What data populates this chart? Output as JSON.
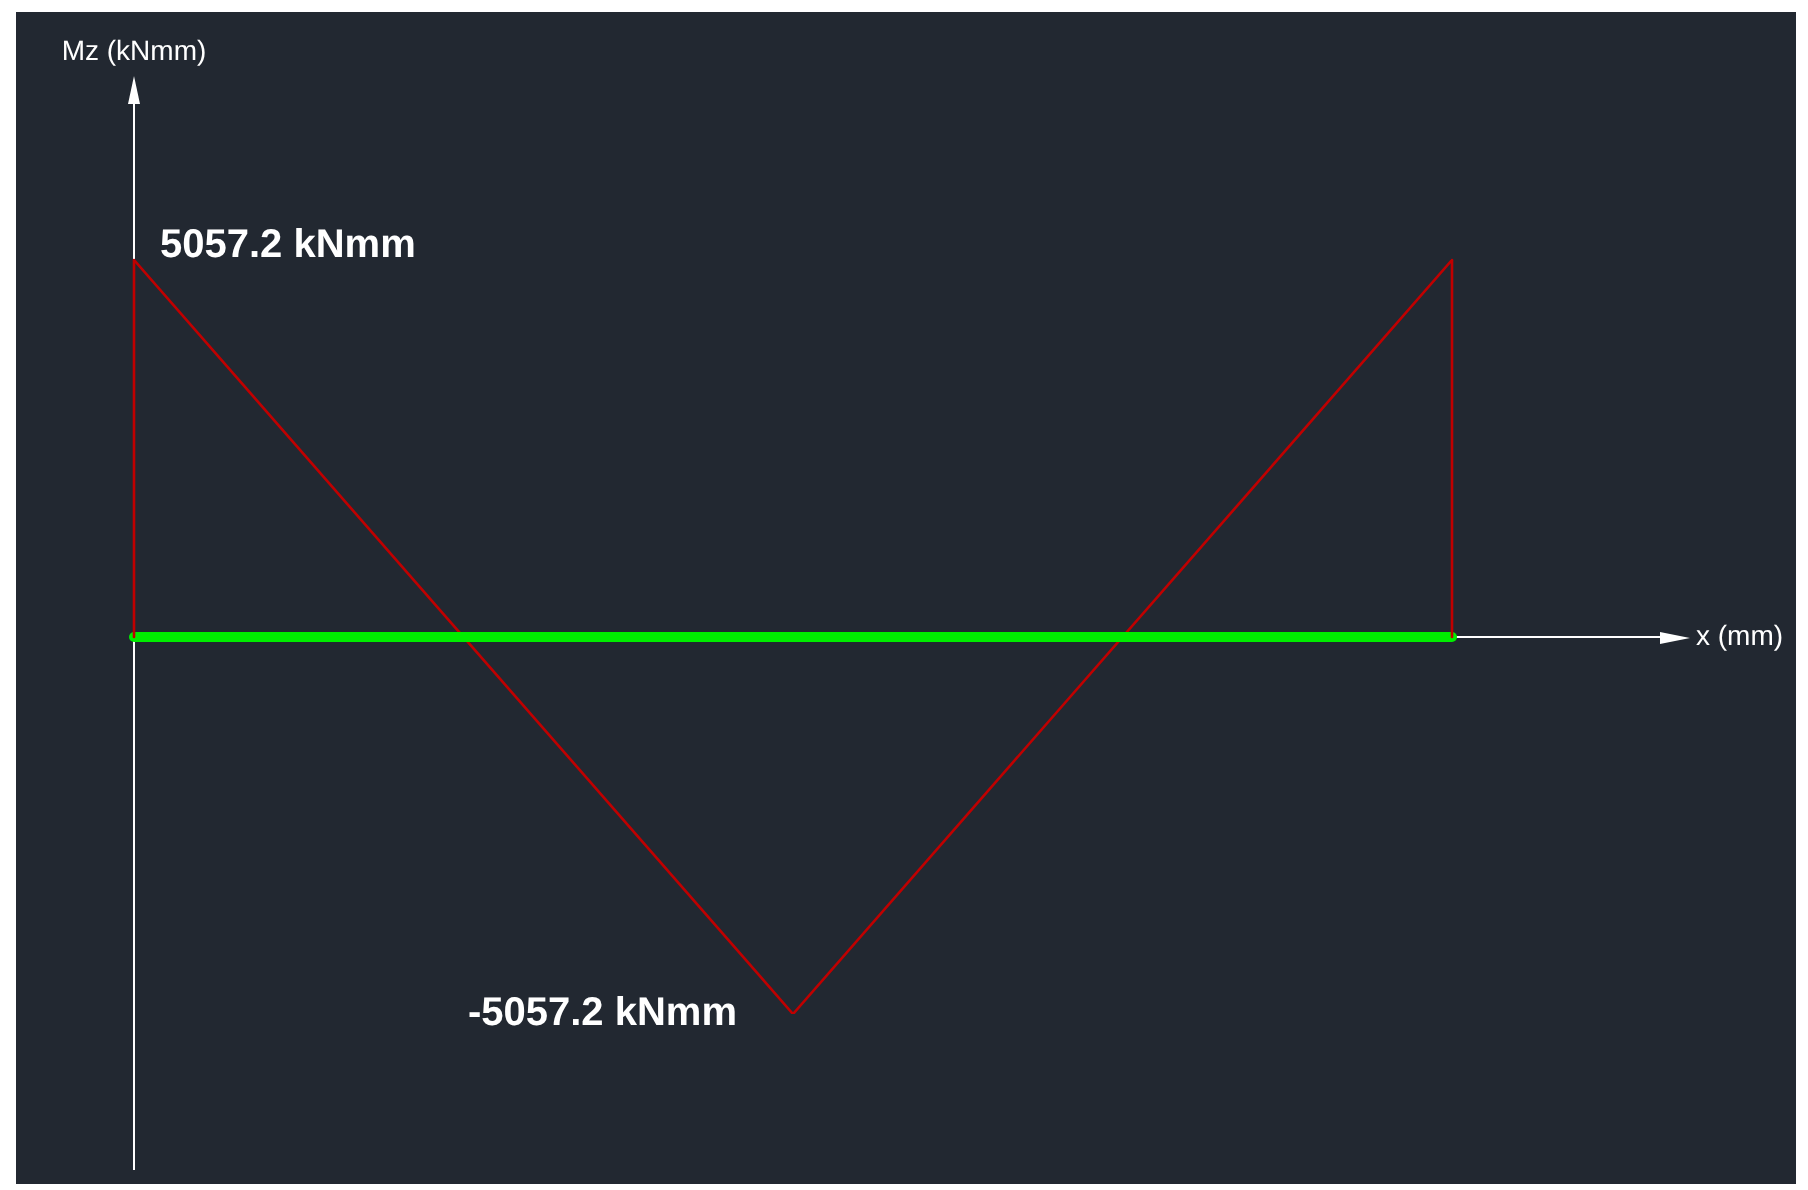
{
  "chart_data": {
    "type": "line",
    "xlabel": "x (mm)",
    "annotations": [
      "Mz (kNmm)"
    ],
    "categories": [
      null,
      null,
      null
    ],
    "tick_labels": false,
    "ref_lines": [
      {
        "axis": "y",
        "value": 0,
        "color": "#00ee00"
      }
    ],
    "marker": "none",
    "line_style": "solid",
    "series": [
      {
        "color": "#c00000",
        "values": [
          5057.2,
          -5057.2,
          5057.2
        ],
        "value_labels": [
          "5057.2 kNmm",
          "-5057.2 kNmm",
          null
        ]
      }
    ]
  }
}
